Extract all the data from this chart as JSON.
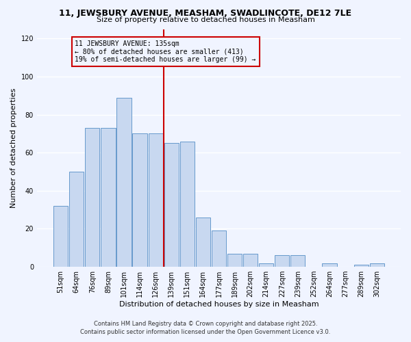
{
  "title_line1": "11, JEWSBURY AVENUE, MEASHAM, SWADLINCOTE, DE12 7LE",
  "title_line2": "Size of property relative to detached houses in Measham",
  "xlabel": "Distribution of detached houses by size in Measham",
  "ylabel": "Number of detached properties",
  "bar_labels": [
    "51sqm",
    "64sqm",
    "76sqm",
    "89sqm",
    "101sqm",
    "114sqm",
    "126sqm",
    "139sqm",
    "151sqm",
    "164sqm",
    "177sqm",
    "189sqm",
    "202sqm",
    "214sqm",
    "227sqm",
    "239sqm",
    "252sqm",
    "264sqm",
    "277sqm",
    "289sqm",
    "302sqm"
  ],
  "bar_values": [
    32,
    50,
    73,
    73,
    89,
    70,
    70,
    65,
    66,
    26,
    19,
    7,
    7,
    2,
    6,
    6,
    0,
    2,
    0,
    1,
    2
  ],
  "bar_color": "#c8d8f0",
  "bar_edge_color": "#6699cc",
  "vline_color": "#cc0000",
  "ylim": [
    0,
    125
  ],
  "yticks": [
    0,
    20,
    40,
    60,
    80,
    100,
    120
  ],
  "annotation_title": "11 JEWSBURY AVENUE: 135sqm",
  "annotation_line1": "← 80% of detached houses are smaller (413)",
  "annotation_line2": "19% of semi-detached houses are larger (99) →",
  "annotation_box_edge": "#cc0000",
  "footer_line1": "Contains HM Land Registry data © Crown copyright and database right 2025.",
  "footer_line2": "Contains public sector information licensed under the Open Government Licence v3.0.",
  "background_color": "#f0f4ff",
  "grid_color": "#ffffff"
}
